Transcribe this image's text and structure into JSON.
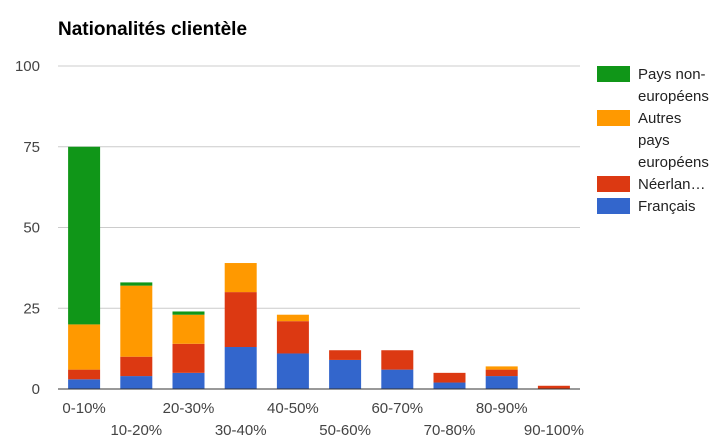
{
  "chart_data": {
    "type": "bar",
    "stacked": true,
    "title": "Nationalités clientèle",
    "xlabel": "",
    "ylabel": "",
    "ylim": [
      0,
      100
    ],
    "yticks": [
      0,
      25,
      50,
      75,
      100
    ],
    "grid": true,
    "legend_position": "right",
    "categories": [
      "0-10%",
      "10-20%",
      "20-30%",
      "30-40%",
      "40-50%",
      "50-60%",
      "60-70%",
      "70-80%",
      "80-90%",
      "90-100%"
    ],
    "series": [
      {
        "name": "Français",
        "legend_label": "Français",
        "color": "#3366cc",
        "values": [
          3,
          4,
          5,
          13,
          11,
          9,
          6,
          2,
          4,
          0
        ]
      },
      {
        "name": "Néerlandais",
        "legend_label": "Néerlan…",
        "color": "#dc3912",
        "values": [
          3,
          6,
          9,
          17,
          10,
          3,
          6,
          3,
          2,
          1
        ]
      },
      {
        "name": "Autres pays européens",
        "legend_label": "Autres pays européens",
        "color": "#ff9900",
        "values": [
          14,
          22,
          9,
          9,
          2,
          0,
          0,
          0,
          1,
          0
        ]
      },
      {
        "name": "Pays non-européens",
        "legend_label": "Pays non-européens",
        "color": "#109618",
        "values": [
          55,
          1,
          1,
          0,
          0,
          0,
          0,
          0,
          0,
          0
        ]
      }
    ]
  }
}
